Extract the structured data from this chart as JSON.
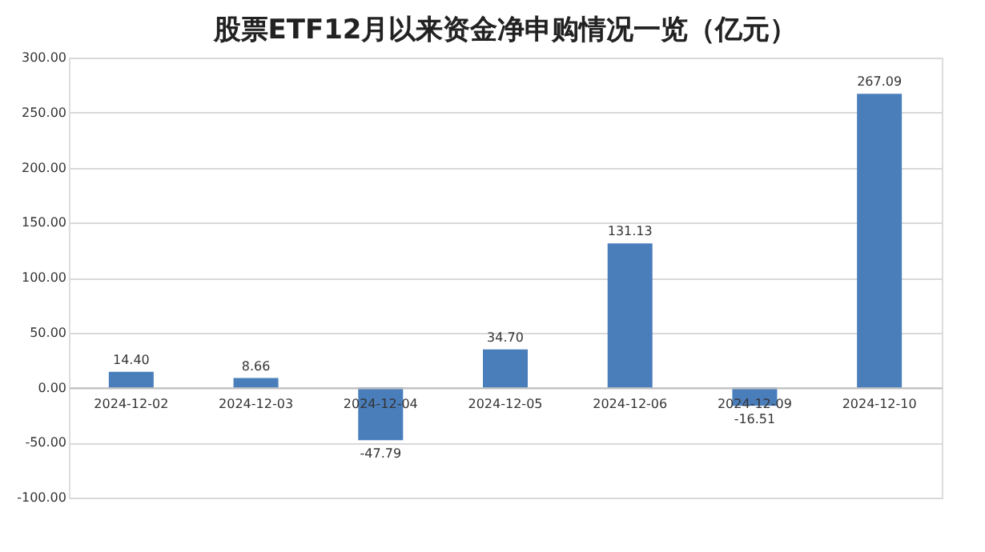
{
  "chart_data": {
    "type": "bar",
    "title": "股票ETF12月以来资金净申购情况一览（亿元）",
    "categories": [
      "2024-12-02",
      "2024-12-03",
      "2024-12-04",
      "2024-12-05",
      "2024-12-06",
      "2024-12-09",
      "2024-12-10"
    ],
    "values": [
      14.4,
      8.66,
      -47.79,
      34.7,
      131.13,
      -16.51,
      267.09
    ],
    "value_labels": [
      "14.40",
      "8.66",
      "-47.79",
      "34.70",
      "131.13",
      "-16.51",
      "267.09"
    ],
    "color": "#4a7ebb",
    "ylim": [
      -100,
      300
    ],
    "yticks": [
      {
        "value": -100,
        "label": "-100.00"
      },
      {
        "value": -50,
        "label": "-50.00"
      },
      {
        "value": 0,
        "label": "0.00"
      },
      {
        "value": 50,
        "label": "50.00"
      },
      {
        "value": 100,
        "label": "100.00"
      },
      {
        "value": 150,
        "label": "150.00"
      },
      {
        "value": 200,
        "label": "200.00"
      },
      {
        "value": 250,
        "label": "250.00"
      },
      {
        "value": 300,
        "label": "300.00"
      }
    ],
    "grid": "y"
  }
}
